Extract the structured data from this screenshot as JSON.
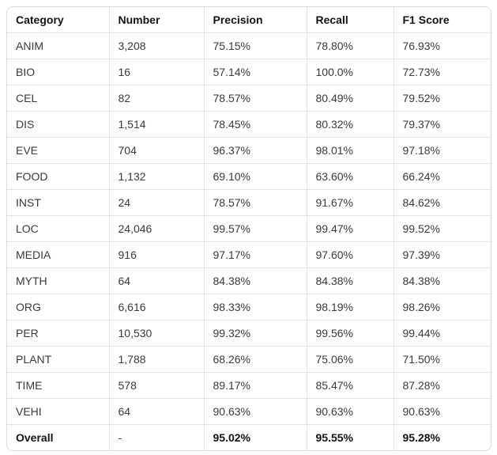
{
  "table": {
    "headers": [
      "Category",
      "Number",
      "Precision",
      "Recall",
      "F1 Score"
    ],
    "rows": [
      [
        "ANIM",
        "3,208",
        "75.15%",
        "78.80%",
        "76.93%"
      ],
      [
        "BIO",
        "16",
        "57.14%",
        "100.0%",
        "72.73%"
      ],
      [
        "CEL",
        "82",
        "78.57%",
        "80.49%",
        "79.52%"
      ],
      [
        "DIS",
        "1,514",
        "78.45%",
        "80.32%",
        "79.37%"
      ],
      [
        "EVE",
        "704",
        "96.37%",
        "98.01%",
        "97.18%"
      ],
      [
        "FOOD",
        "1,132",
        "69.10%",
        "63.60%",
        "66.24%"
      ],
      [
        "INST",
        "24",
        "78.57%",
        "91.67%",
        "84.62%"
      ],
      [
        "LOC",
        "24,046",
        "99.57%",
        "99.47%",
        "99.52%"
      ],
      [
        "MEDIA",
        "916",
        "97.17%",
        "97.60%",
        "97.39%"
      ],
      [
        "MYTH",
        "64",
        "84.38%",
        "84.38%",
        "84.38%"
      ],
      [
        "ORG",
        "6,616",
        "98.33%",
        "98.19%",
        "98.26%"
      ],
      [
        "PER",
        "10,530",
        "99.32%",
        "99.56%",
        "99.44%"
      ],
      [
        "PLANT",
        "1,788",
        "68.26%",
        "75.06%",
        "71.50%"
      ],
      [
        "TIME",
        "578",
        "89.17%",
        "85.47%",
        "87.28%"
      ],
      [
        "VEHI",
        "64",
        "90.63%",
        "90.63%",
        "90.63%"
      ]
    ],
    "overall": [
      "Overall",
      "-",
      "95.02%",
      "95.55%",
      "95.28%"
    ]
  }
}
